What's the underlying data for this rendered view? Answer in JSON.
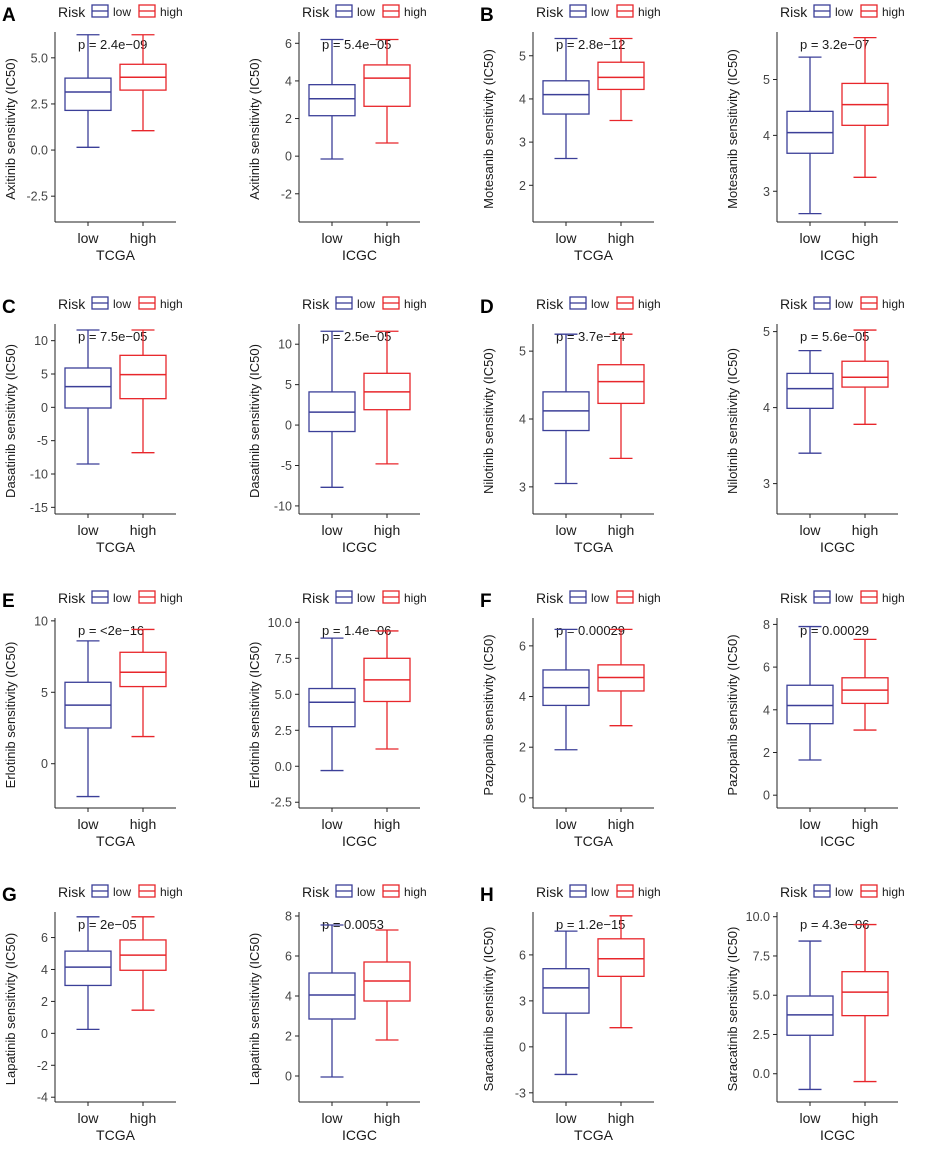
{
  "legend": {
    "title": "Risk",
    "labels": [
      "low",
      "high"
    ]
  },
  "colors": {
    "low": "#3b3f98",
    "high": "#e8262b",
    "axis": "#222222",
    "text": "#1a1a1a"
  },
  "chart_data": [
    {
      "panel": "A",
      "type": "box",
      "drug": "Axitinib",
      "cohort": "TCGA",
      "ylabel": "Axitinib sensitivity (IC50)",
      "pvalue": "p = 2.4e−09",
      "ylim": [
        -3.9,
        6.4
      ],
      "yticks": [
        "-2.5",
        "0.0",
        "2.5",
        "5.0"
      ],
      "categories": [
        "low",
        "high"
      ],
      "series": [
        {
          "name": "low",
          "min": 0.15,
          "q1": 2.15,
          "median": 3.15,
          "q3": 3.9,
          "max": 6.25
        },
        {
          "name": "high",
          "min": 1.05,
          "q1": 3.25,
          "median": 3.95,
          "q3": 4.65,
          "max": 6.25
        }
      ]
    },
    {
      "panel": "",
      "type": "box",
      "drug": "Axitinib",
      "cohort": "ICGC",
      "ylabel": "Axitinib sensitivity (IC50)",
      "pvalue": "p = 5.4e−05",
      "ylim": [
        -3.5,
        6.6
      ],
      "yticks": [
        "-2",
        "0",
        "2",
        "4",
        "6"
      ],
      "categories": [
        "low",
        "high"
      ],
      "series": [
        {
          "name": "low",
          "min": -0.15,
          "q1": 2.15,
          "median": 3.05,
          "q3": 3.8,
          "max": 6.2
        },
        {
          "name": "high",
          "min": 0.7,
          "q1": 2.65,
          "median": 4.15,
          "q3": 4.85,
          "max": 6.2
        }
      ]
    },
    {
      "panel": "B",
      "type": "box",
      "drug": "Motesanib",
      "cohort": "TCGA",
      "ylabel": "Motesanib sensitivity (IC50)",
      "pvalue": "p = 2.8e−12",
      "ylim": [
        1.15,
        5.55
      ],
      "yticks": [
        "2",
        "3",
        "4",
        "5"
      ],
      "categories": [
        "low",
        "high"
      ],
      "series": [
        {
          "name": "low",
          "min": 2.62,
          "q1": 3.65,
          "median": 4.1,
          "q3": 4.42,
          "max": 5.4
        },
        {
          "name": "high",
          "min": 3.5,
          "q1": 4.22,
          "median": 4.5,
          "q3": 4.85,
          "max": 5.4
        }
      ]
    },
    {
      "panel": "",
      "type": "box",
      "drug": "Motesanib",
      "cohort": "ICGC",
      "ylabel": "Motesanib sensitivity (IC50)",
      "pvalue": "p = 3.2e−07",
      "ylim": [
        2.45,
        5.85
      ],
      "yticks": [
        "3",
        "4",
        "5"
      ],
      "categories": [
        "low",
        "high"
      ],
      "series": [
        {
          "name": "low",
          "min": 2.6,
          "q1": 3.68,
          "median": 4.05,
          "q3": 4.43,
          "max": 5.4
        },
        {
          "name": "high",
          "min": 3.25,
          "q1": 4.18,
          "median": 4.55,
          "q3": 4.93,
          "max": 5.75
        }
      ]
    },
    {
      "panel": "C",
      "type": "box",
      "drug": "Dasatinib",
      "cohort": "TCGA",
      "ylabel": "Dasatinib sensitivity (IC50)",
      "pvalue": "p = 7.5e−05",
      "ylim": [
        -16,
        12.5
      ],
      "yticks": [
        "-15",
        "-10",
        "-5",
        "0",
        "5",
        "10"
      ],
      "categories": [
        "low",
        "high"
      ],
      "series": [
        {
          "name": "low",
          "min": -8.5,
          "q1": -0.1,
          "median": 3.1,
          "q3": 5.9,
          "max": 11.6
        },
        {
          "name": "high",
          "min": -6.8,
          "q1": 1.3,
          "median": 4.9,
          "q3": 7.8,
          "max": 11.6
        }
      ]
    },
    {
      "panel": "",
      "type": "box",
      "drug": "Dasatinib",
      "cohort": "ICGC",
      "ylabel": "Dasatinib sensitivity (IC50)",
      "pvalue": "p = 2.5e−05",
      "ylim": [
        -11,
        12.5
      ],
      "yticks": [
        "-10",
        "-5",
        "0",
        "5",
        "10"
      ],
      "categories": [
        "low",
        "high"
      ],
      "series": [
        {
          "name": "low",
          "min": -7.7,
          "q1": -0.8,
          "median": 1.6,
          "q3": 4.1,
          "max": 11.6
        },
        {
          "name": "high",
          "min": -4.8,
          "q1": 1.9,
          "median": 4.1,
          "q3": 6.4,
          "max": 11.6
        }
      ]
    },
    {
      "panel": "D",
      "type": "box",
      "drug": "Nilotinib",
      "cohort": "TCGA",
      "ylabel": "Nilotinib sensitivity (IC50)",
      "pvalue": "p = 3.7e−14",
      "ylim": [
        2.6,
        5.4
      ],
      "yticks": [
        "3",
        "4",
        "5"
      ],
      "categories": [
        "low",
        "high"
      ],
      "series": [
        {
          "name": "low",
          "min": 3.05,
          "q1": 3.83,
          "median": 4.12,
          "q3": 4.4,
          "max": 5.25
        },
        {
          "name": "high",
          "min": 3.42,
          "q1": 4.23,
          "median": 4.55,
          "q3": 4.8,
          "max": 5.25
        }
      ]
    },
    {
      "panel": "",
      "type": "box",
      "drug": "Nilotinib",
      "cohort": "ICGC",
      "ylabel": "Nilotinib sensitivity (IC50)",
      "pvalue": "p = 5.6e−05",
      "ylim": [
        2.6,
        5.1
      ],
      "yticks": [
        "3",
        "4",
        "5"
      ],
      "categories": [
        "low",
        "high"
      ],
      "series": [
        {
          "name": "low",
          "min": 3.4,
          "q1": 3.99,
          "median": 4.25,
          "q3": 4.45,
          "max": 4.75
        },
        {
          "name": "high",
          "min": 3.78,
          "q1": 4.27,
          "median": 4.4,
          "q3": 4.61,
          "max": 5.02
        }
      ]
    },
    {
      "panel": "E",
      "type": "box",
      "drug": "Erlotinib",
      "cohort": "TCGA",
      "ylabel": "Erlotinib sensitivity (IC50)",
      "pvalue": "p = <2e−16",
      "ylim": [
        -3.1,
        10.2
      ],
      "yticks": [
        "0",
        "5",
        "10"
      ],
      "categories": [
        "low",
        "high"
      ],
      "series": [
        {
          "name": "low",
          "min": -2.3,
          "q1": 2.5,
          "median": 4.1,
          "q3": 5.7,
          "max": 8.6
        },
        {
          "name": "high",
          "min": 1.9,
          "q1": 5.4,
          "median": 6.4,
          "q3": 7.8,
          "max": 9.4
        }
      ]
    },
    {
      "panel": "",
      "type": "box",
      "drug": "Erlotinib",
      "cohort": "ICGC",
      "ylabel": "Erlotinib sensitivity (IC50)",
      "pvalue": "p = 1.4e−06",
      "ylim": [
        -2.9,
        10.3
      ],
      "yticks": [
        "-2.5",
        "0.0",
        "2.5",
        "5.0",
        "7.5",
        "10.0"
      ],
      "categories": [
        "low",
        "high"
      ],
      "series": [
        {
          "name": "low",
          "min": -0.3,
          "q1": 2.75,
          "median": 4.45,
          "q3": 5.4,
          "max": 8.9
        },
        {
          "name": "high",
          "min": 1.2,
          "q1": 4.5,
          "median": 6.0,
          "q3": 7.5,
          "max": 9.4
        }
      ]
    },
    {
      "panel": "F",
      "type": "box",
      "drug": "Pazopanib",
      "cohort": "TCGA",
      "ylabel": "Pazopanib sensitivity (IC50)",
      "pvalue": "p = 0.00029",
      "ylim": [
        -0.4,
        7.1
      ],
      "yticks": [
        "0",
        "2",
        "4",
        "6"
      ],
      "categories": [
        "low",
        "high"
      ],
      "series": [
        {
          "name": "low",
          "min": 1.9,
          "q1": 3.65,
          "median": 4.35,
          "q3": 5.05,
          "max": 6.65
        },
        {
          "name": "high",
          "min": 2.85,
          "q1": 4.22,
          "median": 4.75,
          "q3": 5.25,
          "max": 6.65
        }
      ]
    },
    {
      "panel": "",
      "type": "box",
      "drug": "Pazopanib",
      "cohort": "ICGC",
      "ylabel": "Pazopanib sensitivity (IC50)",
      "pvalue": "p = 0.00029",
      "ylim": [
        -0.6,
        8.3
      ],
      "yticks": [
        "0",
        "2",
        "4",
        "6",
        "8"
      ],
      "categories": [
        "low",
        "high"
      ],
      "series": [
        {
          "name": "low",
          "min": 1.65,
          "q1": 3.35,
          "median": 4.2,
          "q3": 5.15,
          "max": 7.9
        },
        {
          "name": "high",
          "min": 3.05,
          "q1": 4.3,
          "median": 4.92,
          "q3": 5.5,
          "max": 7.3
        }
      ]
    },
    {
      "panel": "G",
      "type": "box",
      "drug": "Lapatinib",
      "cohort": "TCGA",
      "ylabel": "Lapatinib sensitivity (IC50)",
      "pvalue": "p = 2e−05",
      "ylim": [
        -4.3,
        7.6
      ],
      "yticks": [
        "-4",
        "-2",
        "0",
        "2",
        "4",
        "6"
      ],
      "categories": [
        "low",
        "high"
      ],
      "series": [
        {
          "name": "low",
          "min": 0.25,
          "q1": 3.0,
          "median": 4.15,
          "q3": 5.15,
          "max": 7.3
        },
        {
          "name": "high",
          "min": 1.45,
          "q1": 3.95,
          "median": 4.9,
          "q3": 5.85,
          "max": 7.3
        }
      ]
    },
    {
      "panel": "",
      "type": "box",
      "drug": "Lapatinib",
      "cohort": "ICGC",
      "ylabel": "Lapatinib sensitivity (IC50)",
      "pvalue": "p = 0.0053",
      "ylim": [
        -1.3,
        8.2
      ],
      "yticks": [
        "0",
        "2",
        "4",
        "6",
        "8"
      ],
      "categories": [
        "low",
        "high"
      ],
      "series": [
        {
          "name": "low",
          "min": -0.05,
          "q1": 2.85,
          "median": 4.05,
          "q3": 5.15,
          "max": 7.55
        },
        {
          "name": "high",
          "min": 1.8,
          "q1": 3.75,
          "median": 4.75,
          "q3": 5.7,
          "max": 7.3
        }
      ]
    },
    {
      "panel": "H",
      "type": "box",
      "drug": "Saracatinib",
      "cohort": "TCGA",
      "ylabel": "Saracatinib sensitivity (IC50)",
      "pvalue": "p = 1.2e−15",
      "ylim": [
        -3.6,
        8.8
      ],
      "yticks": [
        "-3",
        "0",
        "3",
        "6"
      ],
      "categories": [
        "low",
        "high"
      ],
      "series": [
        {
          "name": "low",
          "min": -1.8,
          "q1": 2.2,
          "median": 3.85,
          "q3": 5.1,
          "max": 7.55
        },
        {
          "name": "high",
          "min": 1.25,
          "q1": 4.6,
          "median": 5.75,
          "q3": 7.05,
          "max": 8.55
        }
      ]
    },
    {
      "panel": "",
      "type": "box",
      "drug": "Saracatinib",
      "cohort": "ICGC",
      "ylabel": "Saracatinib sensitivity (IC50)",
      "pvalue": "p = 4.3e−06",
      "ylim": [
        -1.8,
        10.3
      ],
      "yticks": [
        "0.0",
        "2.5",
        "5.0",
        "7.5",
        "10.0"
      ],
      "categories": [
        "low",
        "high"
      ],
      "series": [
        {
          "name": "low",
          "min": -1.0,
          "q1": 2.45,
          "median": 3.75,
          "q3": 4.95,
          "max": 8.45
        },
        {
          "name": "high",
          "min": -0.5,
          "q1": 3.7,
          "median": 5.2,
          "q3": 6.5,
          "max": 9.5
        }
      ]
    }
  ]
}
